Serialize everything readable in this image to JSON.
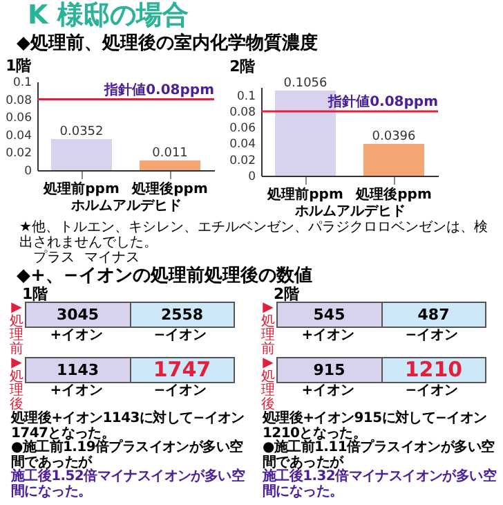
{
  "chart_data": [
    {
      "type": "other",
      "title": "K 様邸の場合",
      "subtitle": "◆処理前、処理後の室内化学物質濃度"
    },
    {
      "type": "bar",
      "title": "1階",
      "categories": [
        "処理前ppm",
        "処理後ppm"
      ],
      "values": [
        0.0352,
        0.011
      ],
      "colors": [
        "#d9d2ee",
        "#f4a774"
      ],
      "data_labels": true,
      "xlabel": "ホルムアルデヒド",
      "ylim": [
        0,
        0.1
      ],
      "yticks": [
        0,
        0.02,
        0.04,
        0.06,
        0.08,
        0.1
      ],
      "ref_lines": [
        {
          "axis": "y",
          "value": 0.08,
          "label": "指針値0.08ppm",
          "color": "#e0203c"
        }
      ]
    },
    {
      "type": "bar",
      "title": "2階",
      "categories": [
        "処理前ppm",
        "処理後ppm"
      ],
      "values": [
        0.1056,
        0.0396
      ],
      "colors": [
        "#d9d2ee",
        "#f4a774"
      ],
      "data_labels": true,
      "xlabel": "ホルムアルデヒド",
      "ylim": [
        0,
        0.11
      ],
      "yticks": [
        0,
        0.02,
        0.04,
        0.06,
        0.08,
        0.1
      ],
      "ref_lines": [
        {
          "axis": "y",
          "value": 0.08,
          "label": "指針値0.08ppm",
          "color": "#e0203c"
        }
      ]
    },
    {
      "type": "other",
      "title": "◆+、−イオンの処理前処理後の数値",
      "annotations": [
        "★他、トルエン、キシレン、エチルベンゼン、パラジクロロベンゼンは、検出されませんでした。",
        "プラス",
        "マイナス"
      ]
    },
    {
      "type": "other",
      "title": "1階",
      "annotations": [
        "▶処理前",
        "3045",
        "2558",
        "+イオン",
        "−イオン",
        "▶処理後",
        "1143",
        "1747",
        "+イオン",
        "−イオン",
        "処理後+イオン1143に対して−イオン1747となった。",
        "●施工前1.19倍プラスイオンが多い空間であったが",
        "施工後1.52倍マイナスイオンが多い空間になった。"
      ]
    },
    {
      "type": "other",
      "title": "2階",
      "annotations": [
        "▶処理前",
        "545",
        "487",
        "+イオン",
        "−イオン",
        "▶処理後",
        "915",
        "1210",
        "+イオン",
        "−イオン",
        "処理後+イオン915に対して−イオン1210となった。",
        "●施工前1.11倍プラスイオンが多い空間であったが",
        "施工後1.32倍マイナスイオンが多い空間になった。"
      ]
    }
  ]
}
